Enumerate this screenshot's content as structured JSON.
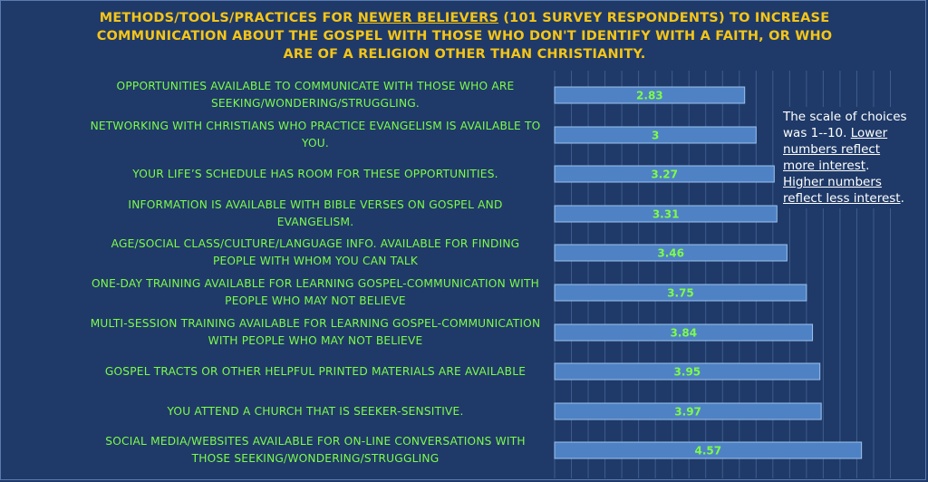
{
  "title": {
    "part1": "METHODS/TOOLS/PRACTICES FOR ",
    "highlight": "NEWER BELIEVERS",
    "part2": " (101 SURVEY RESPONDENTS) TO INCREASE COMMUNICATION ABOUT THE GOSPEL WITH THOSE WHO DON'T IDENTIFY WITH A FAITH, OR WHO ARE OF A RELIGION OTHER THAN CHRISTIANITY."
  },
  "note": {
    "intro": "The scale of choices was 1--10. ",
    "lower": "Lower numbers reflect more interest",
    "mid": ". ",
    "higher": "Higher numbers reflect less interest",
    "end": "."
  },
  "colors": {
    "background": "#1f3a68",
    "bar_fill": "#4f82c4",
    "bar_stroke": "#9cc1ee",
    "label_text": "#7cfc4a",
    "title_text": "#f5c518",
    "gridline": "#3e5c8f"
  },
  "chart_data": {
    "type": "bar",
    "orientation": "horizontal",
    "title": "METHODS/TOOLS/PRACTICES FOR NEWER BELIEVERS (101 SURVEY RESPONDENTS) TO INCREASE COMMUNICATION ABOUT THE GOSPEL WITH THOSE WHO DON'T IDENTIFY WITH A FAITH, OR WHO ARE OF A RELIGION OTHER THAN CHRISTIANITY.",
    "categories": [
      "OPPORTUNITIES AVAILABLE TO COMMUNICATE WITH THOSE WHO ARE SEEKING/WONDERING/STRUGGLING.",
      "NETWORKING WITH CHRISTIANS WHO PRACTICE EVANGELISM IS AVAILABLE TO YOU.",
      "YOUR LIFE’S SCHEDULE HAS ROOM FOR THESE OPPORTUNITIES.",
      "INFORMATION IS AVAILABLE WITH BIBLE VERSES ON GOSPEL AND EVANGELISM.",
      "AGE/SOCIAL CLASS/CULTURE/LANGUAGE INFO. AVAILABLE FOR FINDING PEOPLE WITH WHOM YOU CAN TALK",
      "ONE-DAY TRAINING AVAILABLE FOR LEARNING GOSPEL-COMMUNICATION WITH PEOPLE WHO MAY NOT BELIEVE",
      "MULTI-SESSION TRAINING AVAILABLE FOR LEARNING GOSPEL-COMMUNICATION WITH PEOPLE WHO MAY NOT BELIEVE",
      "GOSPEL TRACTS OR OTHER HELPFUL PRINTED MATERIALS ARE AVAILABLE",
      "YOU ATTEND A CHURCH THAT IS SEEKER-SENSITIVE.",
      "SOCIAL MEDIA/WEBSITES AVAILABLE FOR ON-LINE CONVERSATIONS WITH THOSE  SEEKING/WONDERING/STRUGGLING"
    ],
    "values": [
      2.83,
      3,
      3.27,
      3.31,
      3.46,
      3.75,
      3.84,
      3.95,
      3.97,
      4.57
    ],
    "value_labels": [
      "2.83",
      "3",
      "3.27",
      "3.31",
      "3.46",
      "3.75",
      "3.84",
      "3.95",
      "3.97",
      "4.57"
    ],
    "xlim": [
      0,
      5
    ],
    "grid": true,
    "legend": "none"
  }
}
